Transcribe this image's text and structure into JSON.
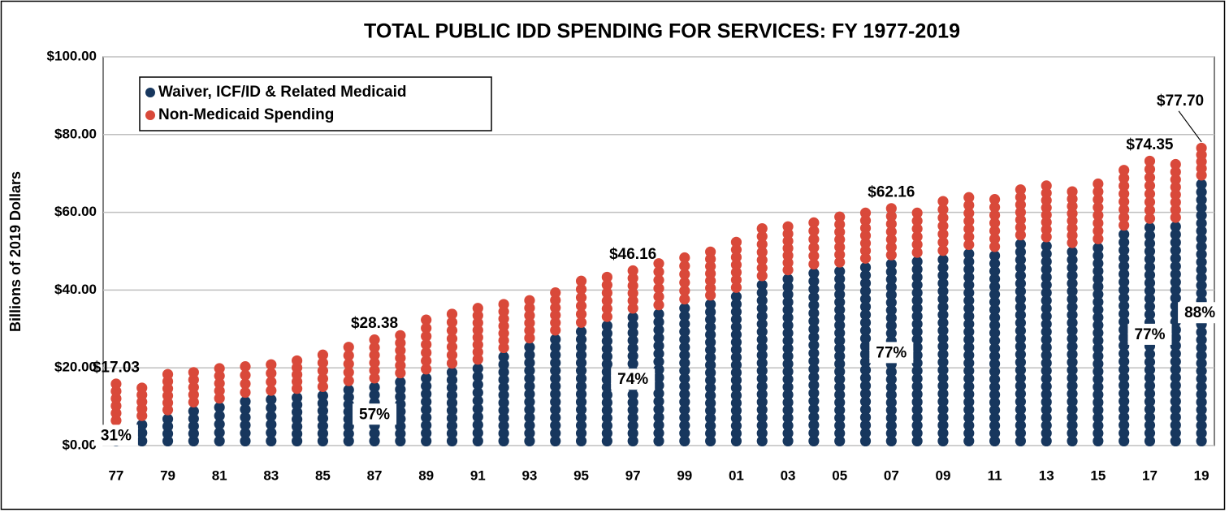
{
  "chart_data": {
    "type": "dot-stacked-bar",
    "title": "TOTAL PUBLIC IDD SPENDING FOR SERVICES: FY 1977-2019",
    "y_label": "Billions of 2019 Dollars",
    "categories": [
      "77",
      null,
      "79",
      null,
      "81",
      null,
      "83",
      null,
      "85",
      null,
      "87",
      null,
      "89",
      null,
      "91",
      null,
      "93",
      null,
      "95",
      null,
      "97",
      null,
      "99",
      null,
      "01",
      null,
      "03",
      null,
      "05",
      null,
      "07",
      null,
      "09",
      null,
      "11",
      null,
      "13",
      null,
      "15",
      null,
      "17",
      null,
      "19"
    ],
    "series": [
      {
        "name": "Waiver, ICF/ID & Related Medicaid",
        "color": "#17375e",
        "values": [
          5.28,
          6.5,
          8,
          10,
          11,
          12.5,
          13,
          13.5,
          14,
          15.5,
          16.18,
          17.5,
          18.5,
          20,
          21,
          24,
          26.5,
          28.5,
          30.5,
          32,
          34.16,
          35,
          36.5,
          37.5,
          39.5,
          42.5,
          44,
          45.5,
          46,
          47,
          47.86,
          48.5,
          49,
          50.5,
          50,
          53,
          52.5,
          51,
          52,
          55.5,
          57.25,
          57.5,
          68.38
        ]
      },
      {
        "name": "Non-Medicaid Spending",
        "color": "#d9493a",
        "values": [
          11.75,
          9.5,
          11.5,
          10,
          10,
          9,
          9,
          9.5,
          10.5,
          11,
          12.2,
          12,
          15,
          15,
          15.5,
          13.5,
          12,
          12,
          13,
          12.5,
          12,
          13,
          13,
          13.5,
          14,
          14.5,
          13.5,
          13,
          14,
          14,
          14.3,
          12.5,
          15,
          14.5,
          14.5,
          14,
          15.5,
          15.5,
          16.5,
          16.5,
          17.1,
          16,
          9.32
        ]
      }
    ],
    "total_labels": [
      "$17.03",
      null,
      null,
      null,
      null,
      null,
      null,
      null,
      null,
      null,
      "$28.38",
      null,
      null,
      null,
      null,
      null,
      null,
      null,
      null,
      null,
      "$46.16",
      null,
      null,
      null,
      null,
      null,
      null,
      null,
      null,
      null,
      "$62.16",
      null,
      null,
      null,
      null,
      null,
      null,
      null,
      null,
      null,
      "$74.35",
      null,
      "$77.70"
    ],
    "share_labels": [
      "31%",
      null,
      null,
      null,
      null,
      null,
      null,
      null,
      null,
      null,
      "57%",
      null,
      null,
      null,
      null,
      null,
      null,
      null,
      null,
      null,
      "74%",
      null,
      null,
      null,
      null,
      null,
      null,
      null,
      null,
      null,
      "77%",
      null,
      null,
      null,
      null,
      null,
      null,
      null,
      null,
      null,
      "77%",
      null,
      "88%"
    ],
    "ylim": [
      0,
      100
    ],
    "yticks": [
      {
        "value": 0,
        "label": "$0.00"
      },
      {
        "value": 20,
        "label": "$20.00"
      },
      {
        "value": 40,
        "label": "$40.00"
      },
      {
        "value": 60,
        "label": "$60.00"
      },
      {
        "value": 80,
        "label": "$80.00"
      },
      {
        "value": 100,
        "label": "$100.00"
      }
    ],
    "grid": true,
    "legend": "upper left"
  }
}
